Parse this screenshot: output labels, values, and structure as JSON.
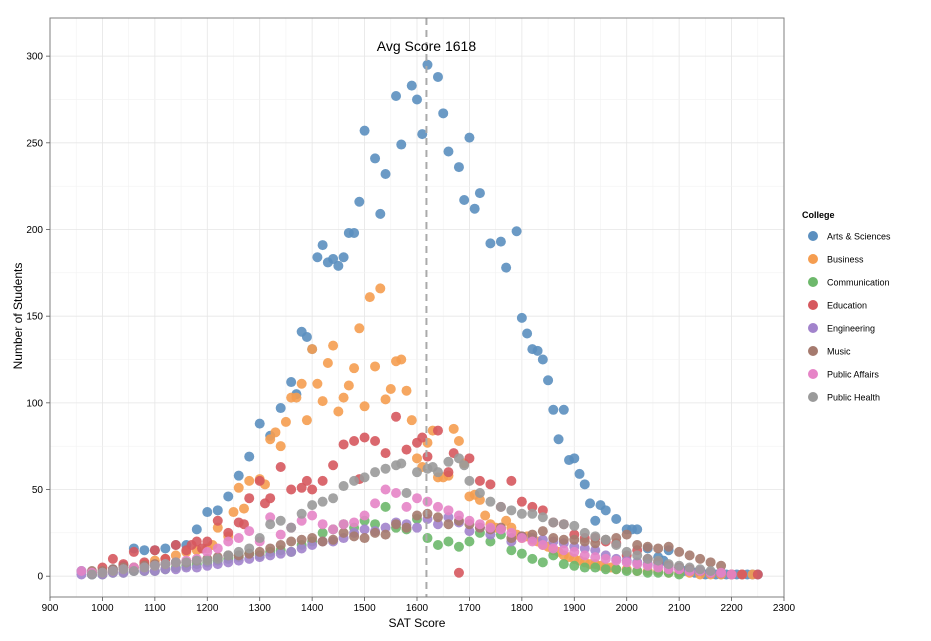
{
  "chart_data": {
    "type": "scatter",
    "xlabel": "SAT Score",
    "ylabel": "Number of Students",
    "xlim": [
      900,
      2300
    ],
    "ylim": [
      -12,
      322
    ],
    "x_ticks": [
      900,
      1000,
      1100,
      1200,
      1300,
      1400,
      1500,
      1600,
      1700,
      1800,
      1900,
      2000,
      2100,
      2200,
      2300
    ],
    "y_ticks": [
      0,
      50,
      100,
      150,
      200,
      250,
      300
    ],
    "grid": true,
    "legend": {
      "title": "College",
      "position": "right"
    },
    "reference_line": {
      "x": 1618,
      "label": "Avg Score 1618"
    },
    "series": [
      {
        "name": "Arts & Sciences",
        "color": "#5b8fbf",
        "x": [
          960,
          980,
          1000,
          1020,
          1040,
          1060,
          1080,
          1100,
          1120,
          1140,
          1160,
          1180,
          1200,
          1220,
          1240,
          1260,
          1280,
          1300,
          1320,
          1340,
          1360,
          1370,
          1380,
          1390,
          1400,
          1410,
          1420,
          1430,
          1440,
          1450,
          1460,
          1470,
          1480,
          1490,
          1500,
          1520,
          1530,
          1540,
          1560,
          1570,
          1590,
          1600,
          1610,
          1620,
          1640,
          1650,
          1660,
          1680,
          1690,
          1700,
          1710,
          1720,
          1740,
          1760,
          1770,
          1790,
          1800,
          1810,
          1820,
          1830,
          1840,
          1850,
          1860,
          1870,
          1880,
          1890,
          1900,
          1910,
          1920,
          1930,
          1940,
          1950,
          1960,
          1980,
          2000,
          2010,
          2020,
          2040,
          2060,
          2070,
          2080,
          2100,
          2110,
          2130,
          2150,
          2160,
          2170,
          2180,
          2190,
          2200,
          2210,
          2220,
          2230,
          2240,
          2250
        ],
        "y": [
          3,
          1,
          2,
          4,
          6,
          16,
          15,
          15,
          16,
          18,
          18,
          27,
          37,
          38,
          46,
          58,
          69,
          88,
          81,
          97,
          112,
          105,
          141,
          138,
          131,
          184,
          191,
          181,
          183,
          179,
          184,
          198,
          198,
          216,
          257,
          241,
          209,
          232,
          277,
          249,
          283,
          275,
          255,
          295,
          288,
          267,
          245,
          236,
          217,
          253,
          212,
          221,
          192,
          193,
          178,
          199,
          149,
          140,
          131,
          130,
          125,
          113,
          96,
          79,
          96,
          67,
          68,
          59,
          53,
          42,
          32,
          41,
          38,
          33,
          27,
          27,
          27,
          16,
          11,
          9,
          15,
          5,
          3,
          2,
          1,
          2,
          1,
          1,
          1,
          1,
          1,
          1,
          1,
          1,
          1
        ]
      },
      {
        "name": "Business",
        "color": "#f59d50",
        "x": [
          1000,
          1020,
          1040,
          1060,
          1080,
          1100,
          1120,
          1140,
          1160,
          1180,
          1200,
          1210,
          1220,
          1240,
          1250,
          1260,
          1270,
          1280,
          1300,
          1310,
          1320,
          1330,
          1340,
          1350,
          1360,
          1370,
          1380,
          1390,
          1400,
          1410,
          1420,
          1430,
          1440,
          1450,
          1460,
          1470,
          1480,
          1490,
          1500,
          1510,
          1520,
          1530,
          1540,
          1550,
          1560,
          1570,
          1580,
          1590,
          1600,
          1610,
          1620,
          1630,
          1640,
          1650,
          1660,
          1670,
          1680,
          1690,
          1700,
          1710,
          1720,
          1730,
          1740,
          1750,
          1760,
          1770,
          1780,
          1790,
          1800,
          1810,
          1820,
          1830,
          1840,
          1850,
          1860,
          1870,
          1880,
          1890,
          1900,
          1910,
          1920,
          1930,
          1940,
          1950,
          1960,
          1970,
          1980,
          2000,
          2020,
          2040,
          2060,
          2080,
          2100,
          2120,
          2140,
          2160,
          2180,
          2200,
          2220,
          2240
        ],
        "y": [
          2,
          3,
          5,
          5,
          7,
          9,
          10,
          12,
          14,
          15,
          16,
          18,
          28,
          23,
          37,
          51,
          39,
          55,
          56,
          53,
          79,
          83,
          75,
          89,
          103,
          103,
          111,
          90,
          131,
          111,
          101,
          123,
          133,
          95,
          103,
          110,
          120,
          143,
          98,
          161,
          121,
          166,
          102,
          108,
          124,
          125,
          107,
          90,
          68,
          63,
          77,
          84,
          57,
          57,
          58,
          85,
          78,
          65,
          46,
          47,
          44,
          35,
          30,
          28,
          27,
          32,
          28,
          24,
          22,
          23,
          21,
          20,
          18,
          17,
          15,
          14,
          12,
          11,
          10,
          9,
          8,
          7,
          7,
          6,
          5,
          5,
          4,
          4,
          3,
          3,
          3,
          2,
          2,
          2,
          1,
          1,
          1,
          1,
          1,
          1
        ]
      },
      {
        "name": "Communication",
        "color": "#6db86b",
        "x": [
          980,
          1000,
          1020,
          1040,
          1060,
          1080,
          1100,
          1120,
          1140,
          1160,
          1180,
          1200,
          1220,
          1240,
          1260,
          1280,
          1300,
          1320,
          1340,
          1360,
          1380,
          1400,
          1420,
          1440,
          1460,
          1480,
          1500,
          1520,
          1540,
          1560,
          1580,
          1600,
          1620,
          1640,
          1660,
          1680,
          1700,
          1720,
          1740,
          1760,
          1780,
          1800,
          1820,
          1840,
          1860,
          1880,
          1900,
          1920,
          1940,
          1960,
          1980,
          2000,
          2020,
          2040,
          2060,
          2080,
          2100
        ],
        "y": [
          1,
          1,
          2,
          2,
          3,
          3,
          3,
          4,
          5,
          6,
          7,
          8,
          9,
          10,
          11,
          13,
          12,
          14,
          15,
          14,
          18,
          20,
          25,
          27,
          30,
          28,
          32,
          30,
          40,
          28,
          27,
          33,
          22,
          18,
          20,
          17,
          20,
          25,
          20,
          24,
          15,
          13,
          10,
          8,
          12,
          7,
          6,
          5,
          5,
          4,
          4,
          3,
          3,
          2,
          2,
          2,
          1
        ]
      },
      {
        "name": "Education",
        "color": "#d6585e",
        "x": [
          980,
          1000,
          1020,
          1040,
          1060,
          1080,
          1100,
          1120,
          1140,
          1160,
          1170,
          1180,
          1190,
          1200,
          1220,
          1240,
          1260,
          1270,
          1280,
          1300,
          1310,
          1320,
          1340,
          1360,
          1380,
          1390,
          1400,
          1420,
          1440,
          1460,
          1480,
          1490,
          1500,
          1520,
          1540,
          1560,
          1580,
          1600,
          1610,
          1620,
          1640,
          1660,
          1670,
          1680,
          1700,
          1720,
          1740,
          1760,
          1780,
          1800,
          1820,
          1840,
          1860,
          1880,
          1900,
          1920,
          1940,
          1960,
          1980,
          2000,
          2020,
          2040,
          2060,
          2080,
          2100,
          2120,
          2140,
          2160,
          2180,
          2200,
          2220,
          2250
        ],
        "y": [
          2,
          5,
          10,
          7,
          14,
          8,
          15,
          10,
          18,
          15,
          18,
          20,
          16,
          20,
          32,
          25,
          31,
          30,
          45,
          55,
          42,
          45,
          63,
          50,
          51,
          55,
          50,
          55,
          64,
          76,
          78,
          56,
          80,
          78,
          71,
          92,
          73,
          77,
          80,
          69,
          84,
          60,
          71,
          2,
          68,
          55,
          53,
          40,
          55,
          43,
          40,
          38,
          31,
          30,
          24,
          22,
          22,
          20,
          19,
          12,
          15,
          10,
          8,
          6,
          5,
          4,
          3,
          2,
          2,
          1,
          1,
          1
        ]
      },
      {
        "name": "Engineering",
        "color": "#a283cc",
        "x": [
          960,
          980,
          1000,
          1020,
          1040,
          1060,
          1080,
          1100,
          1120,
          1140,
          1160,
          1180,
          1200,
          1220,
          1240,
          1260,
          1280,
          1300,
          1320,
          1340,
          1360,
          1380,
          1400,
          1420,
          1440,
          1460,
          1480,
          1500,
          1520,
          1540,
          1560,
          1580,
          1600,
          1620,
          1640,
          1660,
          1680,
          1700,
          1720,
          1740,
          1760,
          1780,
          1800,
          1820,
          1840,
          1860,
          1880,
          1900,
          1920,
          1940,
          1960,
          1980,
          2000,
          2020,
          2040,
          2060,
          2080,
          2100,
          2120,
          2140,
          2160,
          2180
        ],
        "y": [
          1,
          1,
          1,
          2,
          2,
          3,
          3,
          3,
          4,
          4,
          5,
          5,
          6,
          7,
          8,
          9,
          10,
          11,
          12,
          13,
          14,
          16,
          18,
          20,
          20,
          22,
          25,
          27,
          26,
          28,
          31,
          30,
          28,
          33,
          30,
          34,
          31,
          26,
          28,
          24,
          27,
          20,
          23,
          22,
          21,
          20,
          19,
          17,
          16,
          15,
          12,
          10,
          9,
          8,
          7,
          6,
          5,
          4,
          3,
          3,
          2,
          2
        ]
      },
      {
        "name": "Music",
        "color": "#a57a6e",
        "x": [
          980,
          1000,
          1020,
          1040,
          1060,
          1080,
          1100,
          1120,
          1140,
          1160,
          1180,
          1200,
          1220,
          1240,
          1260,
          1280,
          1300,
          1320,
          1340,
          1360,
          1380,
          1400,
          1420,
          1440,
          1460,
          1480,
          1500,
          1520,
          1540,
          1560,
          1580,
          1600,
          1620,
          1640,
          1660,
          1680,
          1700,
          1720,
          1740,
          1760,
          1780,
          1800,
          1820,
          1840,
          1860,
          1880,
          1900,
          1920,
          1940,
          1960,
          1980,
          2000,
          2020,
          2040,
          2060,
          2080,
          2100,
          2120,
          2140,
          2160,
          2180
        ],
        "y": [
          3,
          3,
          4,
          5,
          5,
          6,
          7,
          7,
          8,
          8,
          9,
          10,
          11,
          12,
          12,
          13,
          14,
          16,
          18,
          20,
          21,
          22,
          20,
          21,
          25,
          23,
          22,
          25,
          24,
          30,
          28,
          35,
          36,
          34,
          30,
          32,
          30,
          28,
          27,
          28,
          22,
          23,
          24,
          26,
          22,
          21,
          21,
          20,
          19,
          21,
          22,
          24,
          18,
          17,
          16,
          17,
          14,
          12,
          10,
          8,
          6
        ]
      },
      {
        "name": "Public Affairs",
        "color": "#e684c7",
        "x": [
          960,
          980,
          1000,
          1020,
          1040,
          1060,
          1080,
          1100,
          1120,
          1140,
          1160,
          1180,
          1200,
          1220,
          1240,
          1260,
          1280,
          1300,
          1320,
          1340,
          1360,
          1380,
          1400,
          1420,
          1440,
          1460,
          1480,
          1500,
          1520,
          1540,
          1560,
          1580,
          1600,
          1620,
          1640,
          1660,
          1680,
          1700,
          1720,
          1740,
          1760,
          1780,
          1800,
          1820,
          1840,
          1860,
          1880,
          1900,
          1920,
          1940,
          1960,
          1980,
          2000,
          2020,
          2040,
          2060,
          2080,
          2100,
          2120,
          2140,
          2160,
          2180,
          2200
        ],
        "y": [
          3,
          2,
          2,
          3,
          4,
          5,
          5,
          6,
          7,
          8,
          9,
          10,
          14,
          16,
          20,
          22,
          26,
          20,
          34,
          24,
          28,
          32,
          35,
          30,
          27,
          30,
          31,
          35,
          42,
          50,
          48,
          40,
          45,
          43,
          40,
          38,
          35,
          32,
          30,
          28,
          27,
          25,
          22,
          20,
          18,
          16,
          15,
          14,
          12,
          11,
          10,
          9,
          8,
          7,
          6,
          5,
          4,
          4,
          3,
          3,
          2,
          2,
          1
        ]
      },
      {
        "name": "Public Health",
        "color": "#9a9a9a",
        "x": [
          980,
          1000,
          1020,
          1040,
          1060,
          1080,
          1100,
          1120,
          1140,
          1160,
          1180,
          1200,
          1220,
          1240,
          1260,
          1280,
          1300,
          1320,
          1340,
          1360,
          1380,
          1400,
          1420,
          1440,
          1460,
          1480,
          1500,
          1520,
          1540,
          1560,
          1570,
          1580,
          1600,
          1620,
          1630,
          1640,
          1660,
          1680,
          1690,
          1700,
          1720,
          1740,
          1760,
          1780,
          1800,
          1820,
          1840,
          1860,
          1880,
          1900,
          1920,
          1940,
          1960,
          1980,
          2000,
          2020,
          2040,
          2060,
          2080,
          2100,
          2120,
          2140,
          2160
        ],
        "y": [
          1,
          2,
          3,
          4,
          3,
          5,
          6,
          7,
          8,
          8,
          9,
          9,
          10,
          12,
          14,
          16,
          22,
          30,
          32,
          28,
          36,
          41,
          43,
          45,
          52,
          55,
          57,
          60,
          62,
          64,
          65,
          48,
          60,
          62,
          63,
          60,
          66,
          68,
          64,
          55,
          48,
          43,
          40,
          38,
          36,
          36,
          34,
          31,
          30,
          29,
          25,
          23,
          21,
          18,
          14,
          12,
          10,
          9,
          7,
          6,
          5,
          4,
          3
        ]
      }
    ]
  }
}
